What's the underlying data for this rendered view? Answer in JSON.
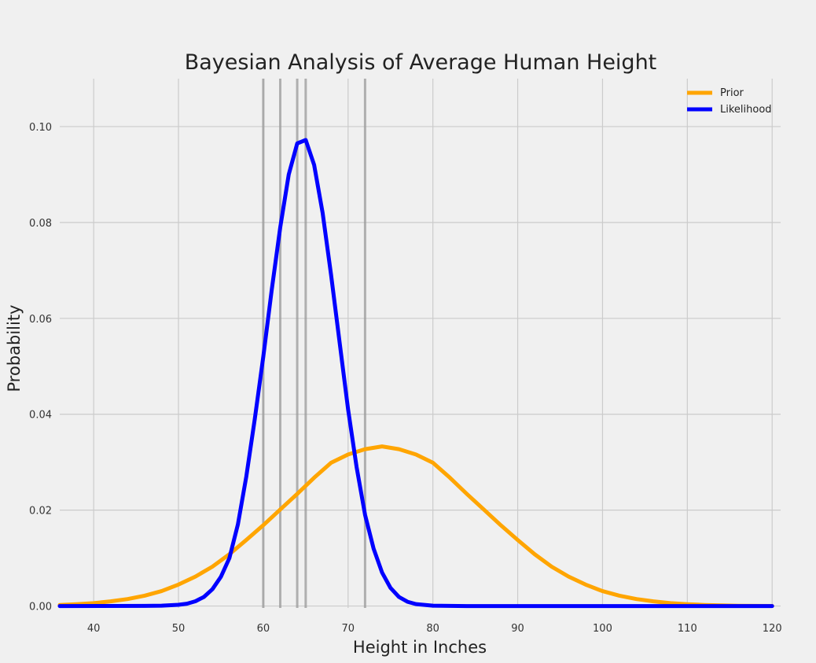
{
  "chart_data": {
    "type": "line",
    "title": "Bayesian Analysis of Average Human Height",
    "xlabel": "Height in Inches",
    "ylabel": "Probability",
    "xlim": [
      36,
      121
    ],
    "ylim": [
      -0.0004,
      0.11
    ],
    "x_ticks": [
      40,
      50,
      60,
      70,
      80,
      90,
      100,
      110,
      120
    ],
    "x_tick_labels": [
      "40",
      "50",
      "60",
      "70",
      "80",
      "90",
      "100",
      "110",
      "120"
    ],
    "y_ticks": [
      0.0,
      0.02,
      0.04,
      0.06,
      0.08,
      0.1
    ],
    "y_tick_labels": [
      "0.00",
      "0.02",
      "0.04",
      "0.06",
      "0.08",
      "0.10"
    ],
    "grid": true,
    "legend": {
      "placement": "top-right"
    },
    "observations": [
      60,
      62,
      64,
      65,
      72
    ],
    "series": [
      {
        "name": "Prior",
        "color": "#ffa500",
        "distribution": "normal",
        "mean": 74,
        "std": 12,
        "x": [
          36,
          38,
          40,
          42,
          44,
          46,
          48,
          50,
          52,
          54,
          56,
          58,
          60,
          62,
          64,
          66,
          68,
          70,
          72,
          74,
          76,
          78,
          80,
          82,
          84,
          86,
          88,
          90,
          92,
          94,
          96,
          98,
          100,
          102,
          104,
          106,
          108,
          110,
          112,
          114,
          116,
          118,
          120
        ],
        "values": [
          0.00022,
          0.00038,
          0.0006,
          0.00097,
          0.00146,
          0.00216,
          0.00311,
          0.00448,
          0.00614,
          0.00822,
          0.0108,
          0.01378,
          0.01685,
          0.02013,
          0.02338,
          0.02677,
          0.02988,
          0.0316,
          0.03272,
          0.0333,
          0.03272,
          0.0316,
          0.02988,
          0.02677,
          0.02338,
          0.02013,
          0.01685,
          0.01378,
          0.0108,
          0.00822,
          0.00614,
          0.00448,
          0.00311,
          0.00216,
          0.00146,
          0.00097,
          0.0006,
          0.00038,
          0.00022,
          0.00012,
          6e-05,
          3e-05,
          1e-05
        ]
      },
      {
        "name": "Likelihood",
        "color": "#0000ff",
        "distribution": "normal",
        "mean": 64.7,
        "std": 4.1,
        "x": [
          36,
          46,
          48,
          50,
          51,
          52,
          53,
          54,
          55,
          56,
          57,
          58,
          59,
          60,
          61,
          62,
          63,
          64,
          65,
          66,
          67,
          68,
          69,
          70,
          71,
          72,
          73,
          74,
          75,
          76,
          77,
          78,
          80,
          84,
          90,
          100,
          110,
          120
        ],
        "values": [
          0.0,
          2e-05,
          7e-05,
          0.00025,
          0.00049,
          0.00099,
          0.0019,
          0.0035,
          0.0061,
          0.01,
          0.017,
          0.027,
          0.039,
          0.052,
          0.066,
          0.079,
          0.09,
          0.0965,
          0.0972,
          0.092,
          0.082,
          0.069,
          0.055,
          0.041,
          0.029,
          0.019,
          0.012,
          0.007,
          0.0038,
          0.0019,
          0.0009,
          0.0004,
          7e-05,
          0.0,
          0.0,
          0.0,
          0.0,
          0.0
        ]
      }
    ]
  }
}
